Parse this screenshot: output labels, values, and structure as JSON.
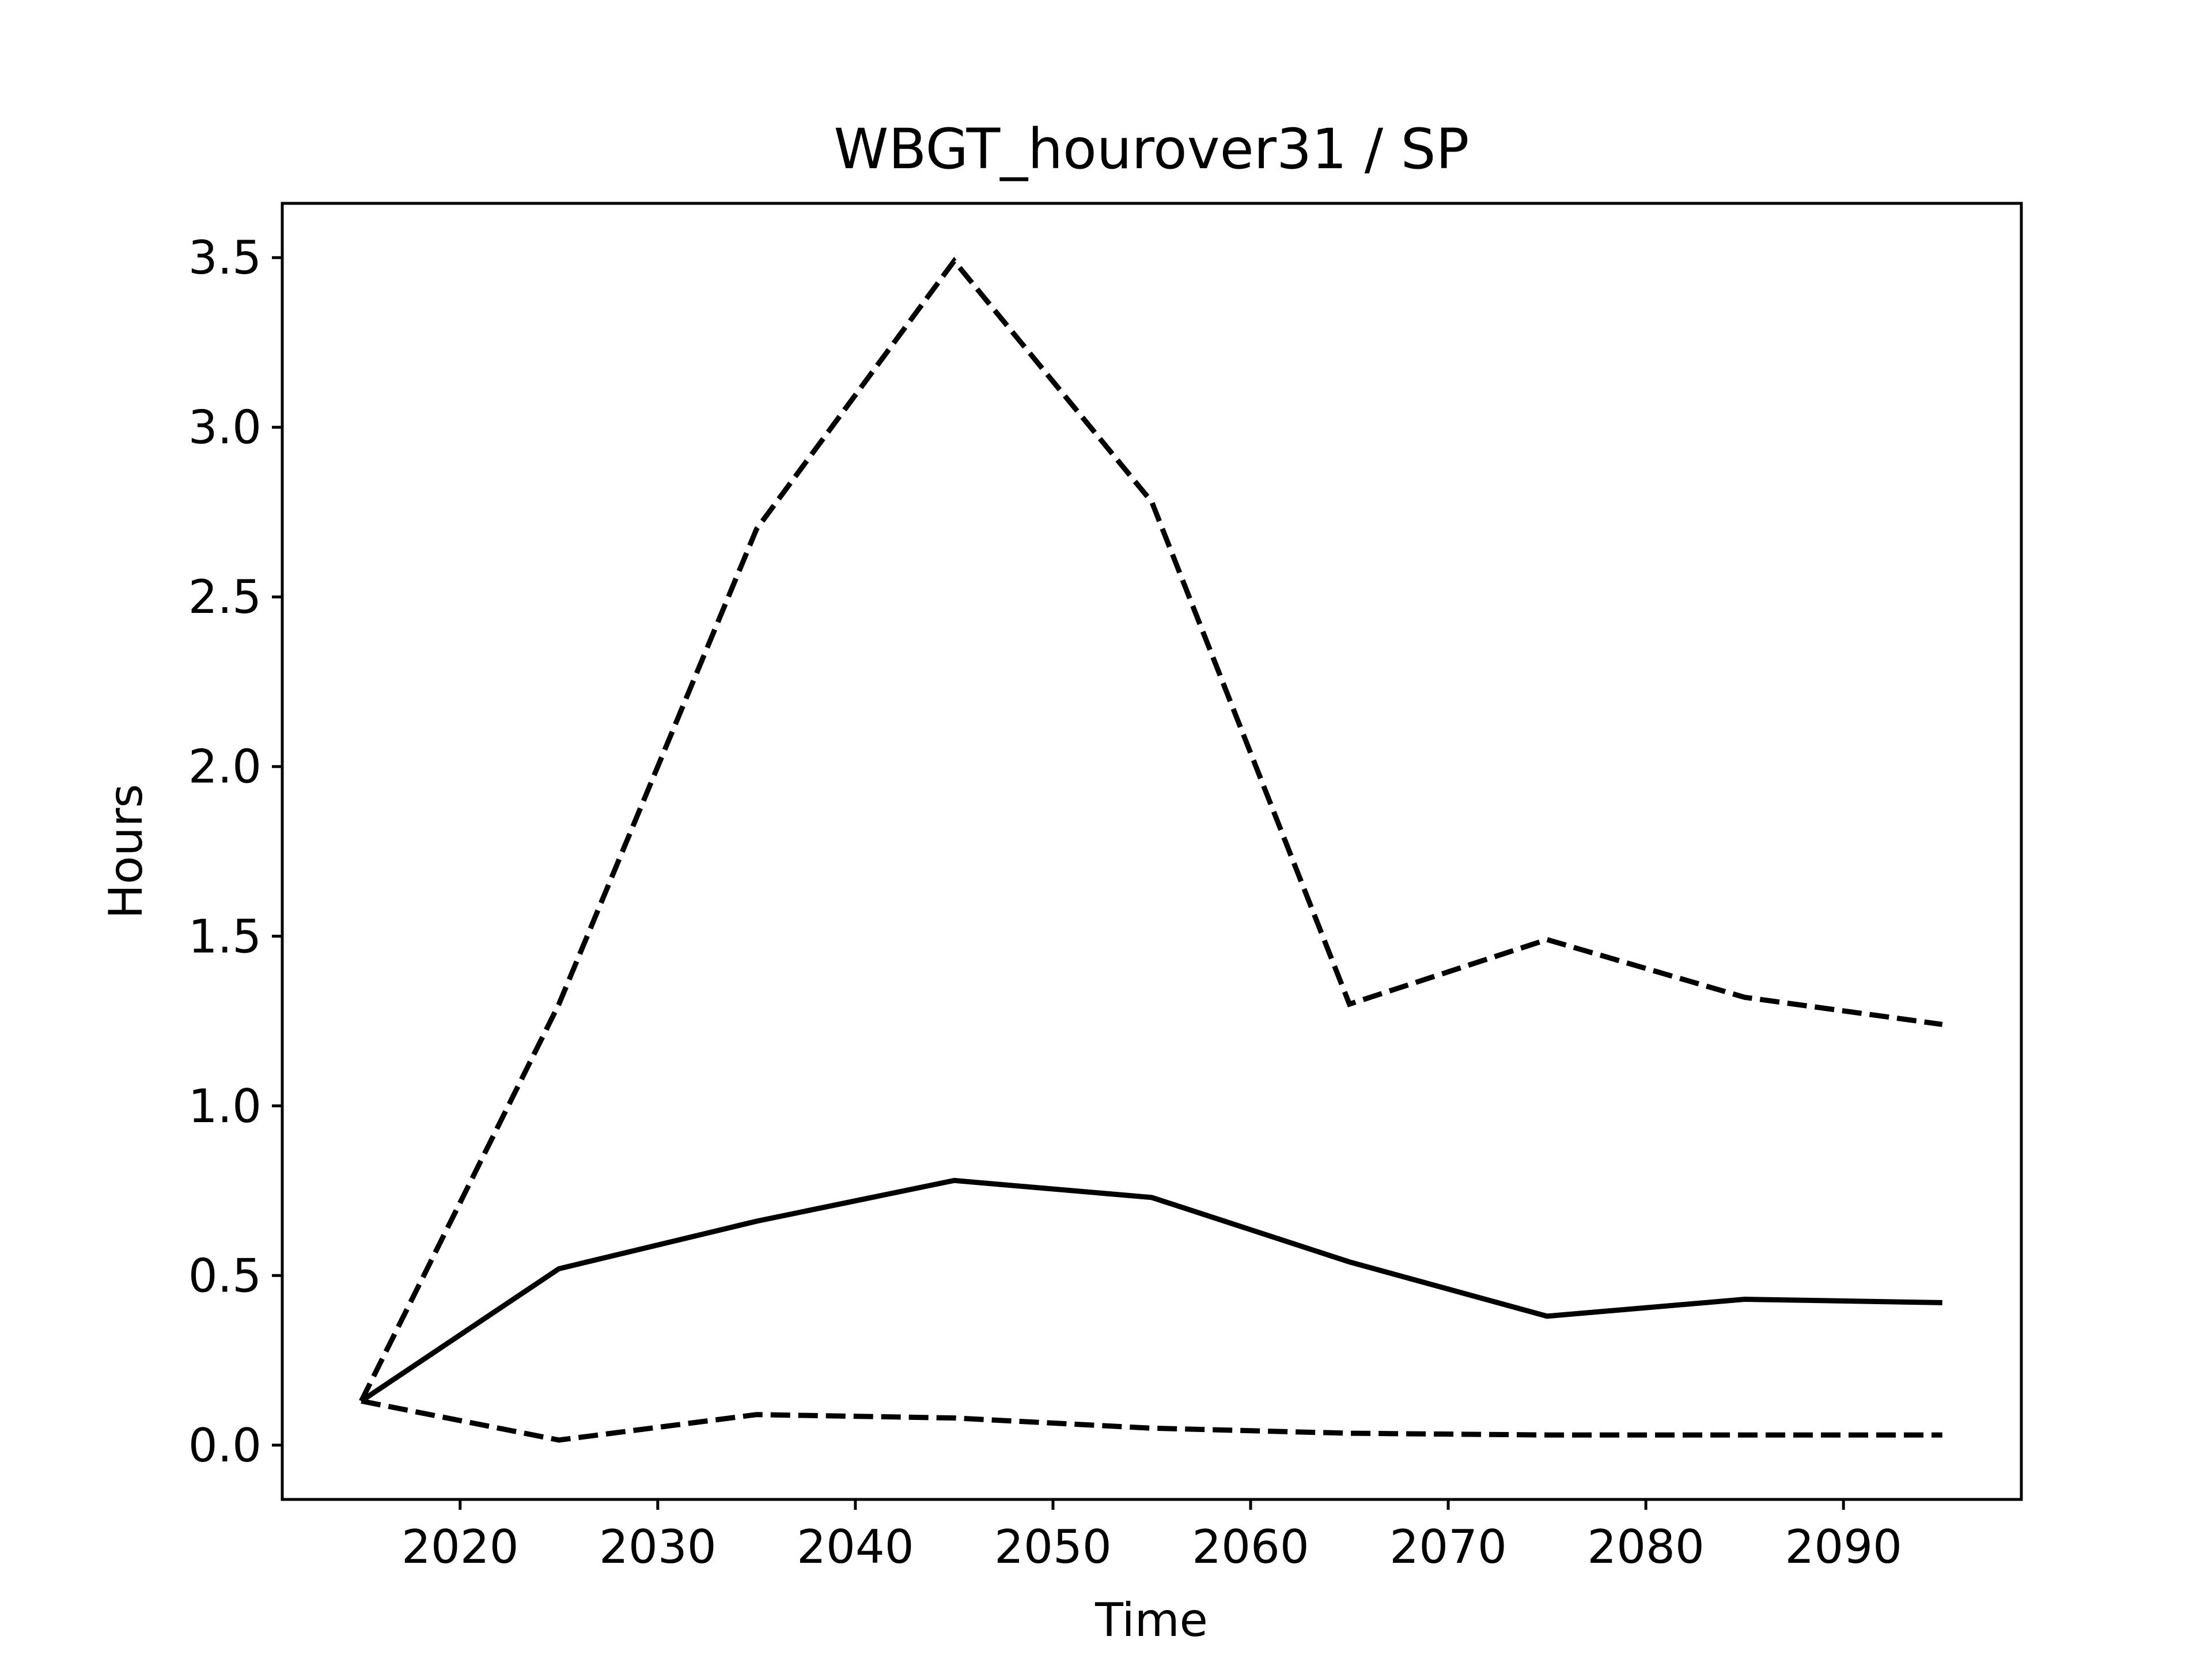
{
  "chart_data": {
    "type": "line",
    "title": "WBGT_hourover31 / SP",
    "xlabel": "Time",
    "ylabel": "Hours",
    "x": [
      2015,
      2025,
      2035,
      2045,
      2055,
      2065,
      2075,
      2085,
      2095
    ],
    "xlim": [
      2011,
      2099
    ],
    "ylim": [
      -0.16,
      3.66
    ],
    "xticks": [
      2020,
      2030,
      2040,
      2050,
      2060,
      2070,
      2080,
      2090
    ],
    "yticks": [
      0.0,
      0.5,
      1.0,
      1.5,
      2.0,
      2.5,
      3.0,
      3.5
    ],
    "yticklabels": [
      "0.0",
      "0.5",
      "1.0",
      "1.5",
      "2.0",
      "2.5",
      "3.0",
      "3.5"
    ],
    "grid": false,
    "series": [
      {
        "style": "dashed",
        "color": "#000000",
        "values": [
          0.13,
          1.3,
          2.7,
          3.49,
          2.78,
          1.3,
          1.49,
          1.32,
          1.24
        ]
      },
      {
        "style": "solid",
        "color": "#000000",
        "values": [
          0.13,
          0.52,
          0.66,
          0.78,
          0.73,
          0.54,
          0.38,
          0.43,
          0.42
        ]
      },
      {
        "style": "dashed",
        "color": "#000000",
        "values": [
          0.13,
          0.015,
          0.09,
          0.08,
          0.05,
          0.035,
          0.03,
          0.03,
          0.03
        ]
      }
    ]
  }
}
